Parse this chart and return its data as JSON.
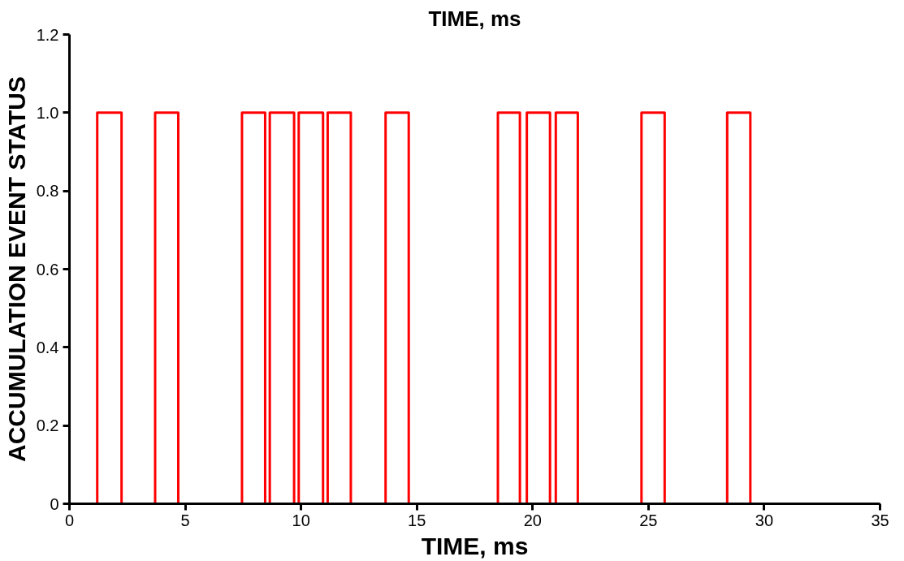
{
  "chart_data": {
    "type": "step",
    "title": "TIME, ms",
    "xlabel": "TIME, ms",
    "ylabel": "ACCUMULATION EVENT STATUS",
    "x": [
      0,
      1.2,
      2.25,
      3.7,
      4.7,
      7.45,
      8.45,
      8.65,
      9.7,
      9.9,
      10.95,
      11.15,
      12.15,
      13.65,
      14.65,
      18.5,
      19.45,
      19.75,
      20.75,
      21.0,
      21.95,
      24.7,
      25.7,
      28.4,
      29.4,
      30.85
    ],
    "series": [
      {
        "color": "#ff0000",
        "values": [
          0,
          1,
          0,
          1,
          0,
          1,
          0,
          1,
          0,
          1,
          0,
          1,
          0,
          1,
          0,
          1,
          0,
          1,
          0,
          1,
          0,
          1,
          0,
          1,
          0,
          0
        ]
      }
    ],
    "xlim": [
      0,
      35
    ],
    "xticks": [
      0,
      5,
      10,
      15,
      20,
      25,
      30,
      35
    ],
    "ylim": [
      0,
      1.2
    ],
    "yticks": [
      0,
      0.2,
      0.4,
      0.6,
      0.8,
      {
        "value": 1,
        "label": "1.0"
      },
      1.2
    ],
    "grid": false,
    "line_style": "solid",
    "marker": "none"
  }
}
